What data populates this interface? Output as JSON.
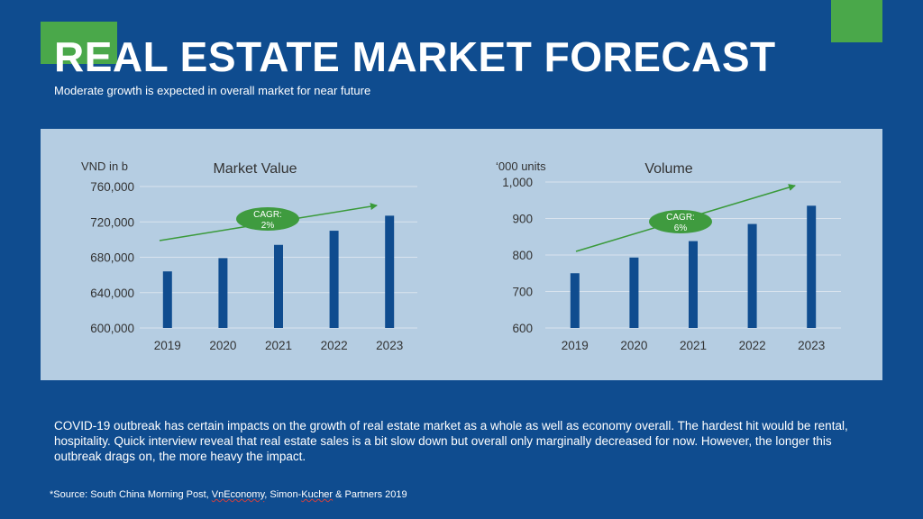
{
  "slide": {
    "title": "REAL ESTATE MARKET FORECAST",
    "subtitle": "Moderate growth is expected in overall market for near future",
    "body": "COVID-19 outbreak has certain impacts on the growth of real estate market as a whole as well as economy overall. The hardest hit would be rental, hospitality. Quick interview reveal that real estate sales is a bit slow down but overall only marginally decreased for now. However, the longer this outbreak drags on, the more heavy the impact.",
    "source_prefix": "*Source: South China Morning Post, ",
    "source_vneconomy": "VnEconomy",
    "source_mid": ", Simon-",
    "source_kucher": "Kucher",
    "source_suffix": " & Partners 2019",
    "colors": {
      "background": "#0f4c8f",
      "accent": "#4aa84a",
      "panel": "#b5cde2",
      "bar": "#0f4c8f"
    }
  },
  "chart_data": [
    {
      "type": "bar",
      "title": "Market Value",
      "ylabel": "VND in b",
      "categories": [
        "2019",
        "2020",
        "2021",
        "2022",
        "2023"
      ],
      "values": [
        664000,
        679000,
        694000,
        710000,
        727000
      ],
      "ylim": [
        600000,
        760000
      ],
      "yticks": [
        600000,
        640000,
        680000,
        720000,
        760000
      ],
      "ytick_labels": [
        "600,000",
        "640,000",
        "680,000",
        "720,000",
        "760,000"
      ],
      "grid": true,
      "annotation": {
        "line1": "CAGR:",
        "line2": "2%"
      }
    },
    {
      "type": "bar",
      "title": "Volume",
      "ylabel": "‘000 units",
      "categories": [
        "2019",
        "2020",
        "2021",
        "2022",
        "2023"
      ],
      "values": [
        750,
        793,
        838,
        885,
        935
      ],
      "ylim": [
        600,
        1000
      ],
      "yticks": [
        600,
        700,
        800,
        900,
        1000
      ],
      "ytick_labels": [
        "600",
        "700",
        "800",
        "900",
        "1,000"
      ],
      "grid": true,
      "annotation": {
        "line1": "CAGR:",
        "line2": "6%"
      }
    }
  ]
}
